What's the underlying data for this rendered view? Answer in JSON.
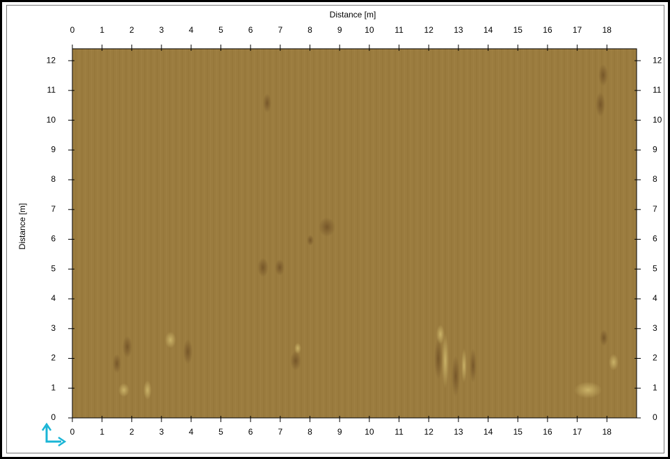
{
  "chart_data": {
    "type": "image",
    "xlabel": "Distance [m]",
    "ylabel": "Distance [m]",
    "xlim": [
      0,
      19
    ],
    "ylim": [
      0,
      12.4
    ],
    "xticks": [
      0,
      1,
      2,
      3,
      4,
      5,
      6,
      7,
      8,
      9,
      10,
      11,
      12,
      13,
      14,
      15,
      16,
      17,
      18
    ],
    "yticks": [
      0,
      1,
      2,
      3,
      4,
      5,
      6,
      7,
      8,
      9,
      10,
      11,
      12
    ],
    "color": "#9b7c3f"
  }
}
